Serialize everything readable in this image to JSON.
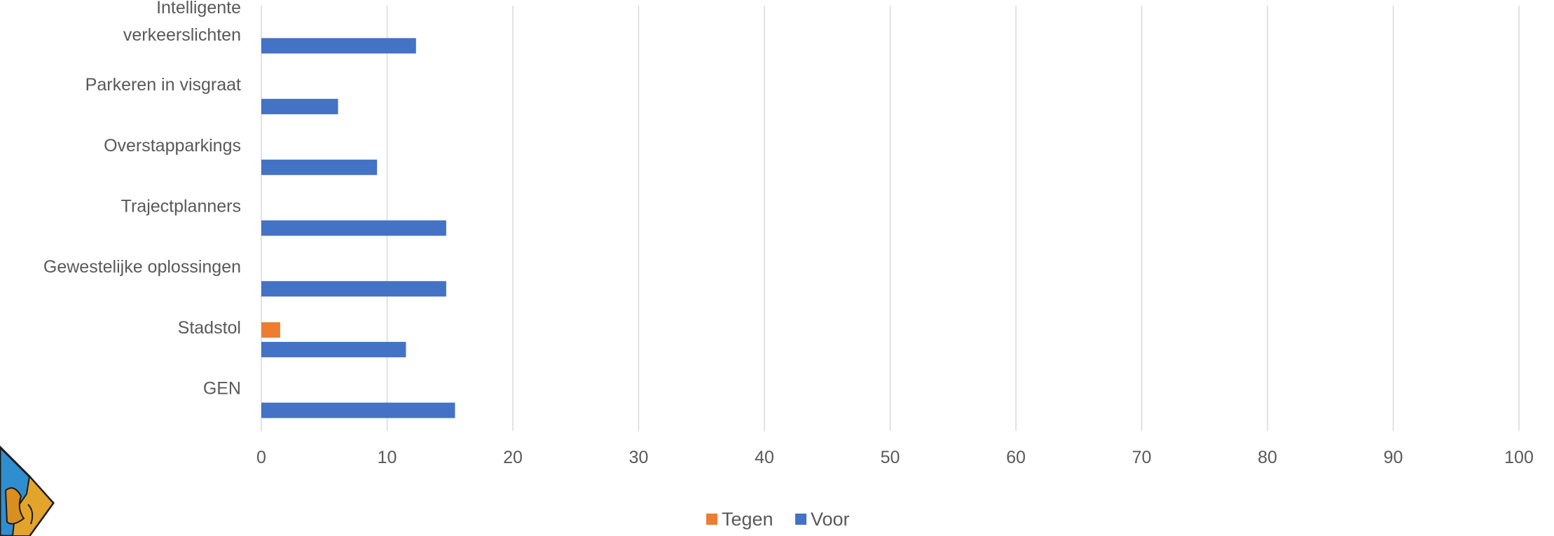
{
  "chart_data": {
    "type": "bar",
    "orientation": "horizontal",
    "categories": [
      "GEN",
      "Stadstol",
      "Gewestelijke oplossingen",
      "Trajectplanners",
      "Overstapparkings",
      "Parkeren in visgraat",
      "Intelligente verkeerslichten"
    ],
    "category_label_lines": [
      [
        "GEN"
      ],
      [
        "Stadstol"
      ],
      [
        "Gewestelijke oplossingen"
      ],
      [
        "Trajectplanners"
      ],
      [
        "Overstapparkings"
      ],
      [
        "Parkeren in visgraat"
      ],
      [
        "Intelligente",
        "verkeerslichten"
      ]
    ],
    "series": [
      {
        "name": "Tegen",
        "color": "#ED7D31",
        "values": [
          0,
          1.5,
          0,
          0,
          0,
          0,
          0
        ]
      },
      {
        "name": "Voor",
        "color": "#4472C4",
        "values": [
          15.4,
          11.5,
          14.7,
          14.7,
          9.2,
          6.1,
          12.3
        ]
      }
    ],
    "xlim": [
      0,
      100
    ],
    "xticks": [
      "0",
      "10",
      "20",
      "30",
      "40",
      "50",
      "60",
      "70",
      "80",
      "90",
      "100"
    ],
    "grid": true,
    "legend_position": "bottom",
    "title": "",
    "xlabel": "",
    "ylabel": ""
  },
  "colors": {
    "gridline": "#D9D9D9",
    "text": "#595959"
  }
}
